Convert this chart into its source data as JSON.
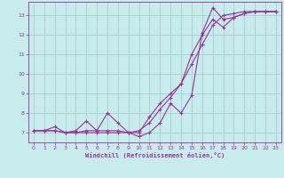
{
  "bg_color": "#c8ecec",
  "grid_color": "#aad4d4",
  "line_color": "#993399",
  "xlabel": "Windchill (Refroidissement éolien,°C)",
  "xlabel_color": "#993399",
  "tick_color": "#993399",
  "xlim": [
    -0.5,
    23.5
  ],
  "ylim": [
    6.5,
    13.7
  ],
  "xticks": [
    0,
    1,
    2,
    3,
    4,
    5,
    6,
    7,
    8,
    9,
    10,
    11,
    12,
    13,
    14,
    15,
    16,
    17,
    18,
    19,
    20,
    21,
    22,
    23
  ],
  "yticks": [
    7,
    8,
    9,
    10,
    11,
    12,
    13
  ],
  "series1_x": [
    0,
    1,
    2,
    3,
    4,
    5,
    6,
    7,
    8,
    9,
    10,
    11,
    12,
    13,
    14,
    15,
    16,
    17,
    18,
    19,
    20,
    21,
    22,
    23
  ],
  "series1_y": [
    7.1,
    7.1,
    7.3,
    7.0,
    7.1,
    7.6,
    7.1,
    8.0,
    7.5,
    7.0,
    6.8,
    7.0,
    7.5,
    8.5,
    8.0,
    8.9,
    12.1,
    13.4,
    12.8,
    12.9,
    13.1,
    13.2,
    13.2,
    13.2
  ],
  "series2_x": [
    0,
    1,
    2,
    3,
    4,
    5,
    6,
    7,
    8,
    9,
    10,
    11,
    12,
    13,
    14,
    15,
    16,
    17,
    18,
    19,
    20,
    21,
    22,
    23
  ],
  "series2_y": [
    7.1,
    7.1,
    7.1,
    7.0,
    7.0,
    7.1,
    7.1,
    7.1,
    7.1,
    7.0,
    7.0,
    7.8,
    8.5,
    9.0,
    9.5,
    11.0,
    12.0,
    12.8,
    12.4,
    12.9,
    13.1,
    13.2,
    13.2,
    13.2
  ],
  "series3_x": [
    0,
    1,
    2,
    3,
    4,
    5,
    6,
    7,
    8,
    9,
    10,
    11,
    12,
    13,
    14,
    15,
    16,
    17,
    18,
    19,
    20,
    21,
    22,
    23
  ],
  "series3_y": [
    7.1,
    7.1,
    7.1,
    7.0,
    7.0,
    7.0,
    7.0,
    7.0,
    7.0,
    7.0,
    7.1,
    7.5,
    8.2,
    8.8,
    9.5,
    10.5,
    11.5,
    12.5,
    13.0,
    13.1,
    13.2,
    13.2,
    13.2,
    13.2
  ]
}
